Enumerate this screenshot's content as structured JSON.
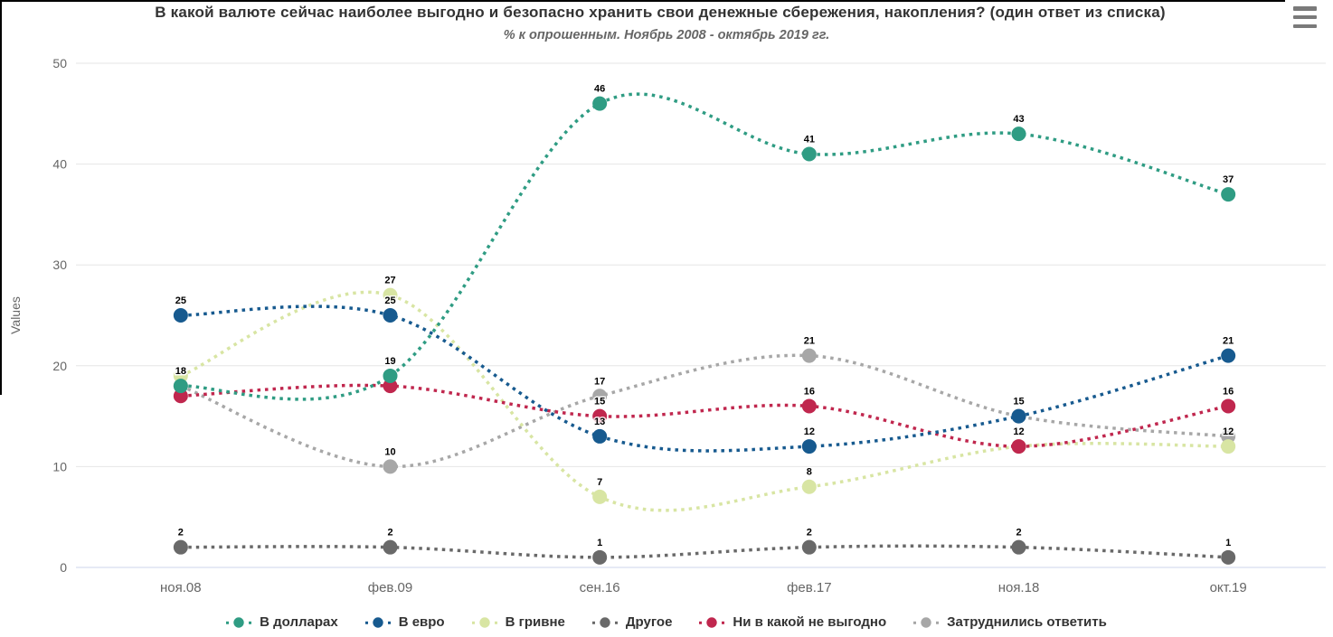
{
  "header": {
    "menu_icon": "hamburger-icon"
  },
  "chart_data": {
    "type": "line",
    "line_style": "dotted",
    "title": "В какой валюте сейчас наиболее выгодно и безопасно хранить свои денежные сбережения, накопления? (один ответ из списка)",
    "subtitle": "% к опрошенным. Ноябрь 2008 - октябрь 2019 гг.",
    "ylabel": "Values",
    "xlabel": "",
    "ylim": [
      0,
      50
    ],
    "yticks": [
      0,
      10,
      20,
      30,
      40,
      50
    ],
    "grid": true,
    "legend_position": "bottom",
    "categories": [
      "ноя.08",
      "фев.09",
      "сен.16",
      "фев.17",
      "ноя.18",
      "окт.19"
    ],
    "series": [
      {
        "name": "В долларах",
        "color": "#2f9c83",
        "values": [
          18,
          19,
          46,
          41,
          43,
          37
        ],
        "labels_visible": [
          true,
          true,
          true,
          true,
          true,
          true
        ]
      },
      {
        "name": "В евро",
        "color": "#175a8f",
        "values": [
          25,
          25,
          13,
          12,
          15,
          21
        ],
        "labels_visible": [
          true,
          true,
          true,
          true,
          true,
          true
        ]
      },
      {
        "name": "В гривне",
        "color": "#d8e5a3",
        "values": [
          19,
          27,
          7,
          8,
          12,
          12
        ],
        "labels_visible": [
          false,
          true,
          true,
          true,
          false,
          true
        ]
      },
      {
        "name": "Другое",
        "color": "#696969",
        "values": [
          2,
          2,
          1,
          2,
          2,
          1
        ],
        "labels_visible": [
          true,
          true,
          true,
          true,
          true,
          true
        ]
      },
      {
        "name": "Ни в какой не выгодно",
        "color": "#c0274e",
        "values": [
          17,
          18,
          15,
          16,
          12,
          16
        ],
        "labels_visible": [
          false,
          false,
          true,
          true,
          true,
          true
        ]
      },
      {
        "name": "Затруднились ответить",
        "color": "#a7a7a7",
        "values": [
          18,
          10,
          17,
          21,
          15,
          13
        ],
        "labels_visible": [
          true,
          true,
          true,
          true,
          false,
          false
        ]
      }
    ],
    "draw_order": [
      5,
      2,
      3,
      4,
      1,
      0
    ],
    "colors": {
      "grid_line": "#e6e6e6",
      "axis_line": "#ccd6eb",
      "tick_text": "#666666",
      "data_label": "#000000",
      "title_text": "#333333"
    }
  }
}
